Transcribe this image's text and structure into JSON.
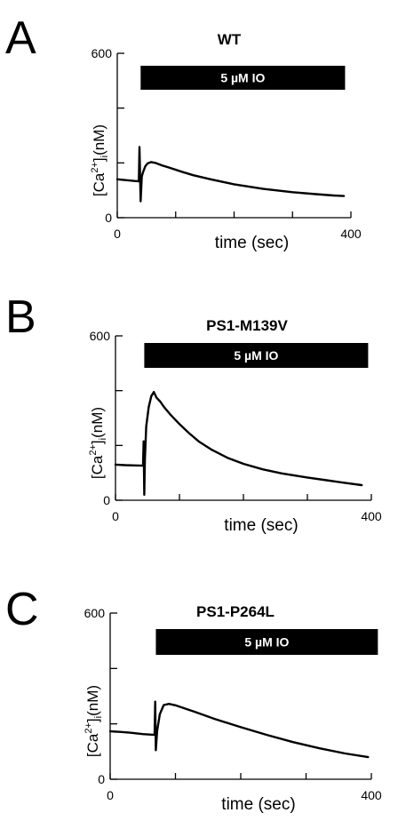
{
  "chart_data": [
    {
      "type": "line",
      "panel": "A",
      "title": "WT",
      "xlabel": "time (sec)",
      "ylabel_parts": {
        "a": "[Ca",
        "sup": "2+",
        "b": "]",
        "sub": "i",
        "c": "(nM)"
      },
      "xlim": [
        0,
        400
      ],
      "ylim": [
        0,
        600
      ],
      "x_ticks": [
        0,
        100,
        200,
        300,
        400
      ],
      "x_tick_labels": [
        "0",
        "",
        "",
        "",
        "400"
      ],
      "y_ticks": [
        0,
        200,
        400,
        600
      ],
      "y_tick_labels": [
        "0",
        "",
        "",
        "600"
      ],
      "grid": false,
      "bar": {
        "label": "5 µM IO",
        "start": 40,
        "end": 390
      },
      "series": [
        {
          "color": "#000000",
          "x": [
            0,
            10,
            20,
            30,
            37,
            38,
            40,
            42,
            44,
            48,
            52,
            58,
            65,
            75,
            90,
            110,
            130,
            160,
            200,
            250,
            300,
            340,
            370,
            388
          ],
          "y": [
            140,
            138,
            136,
            134,
            133,
            258,
            60,
            150,
            165,
            188,
            198,
            203,
            200,
            192,
            182,
            168,
            155,
            140,
            122,
            105,
            93,
            86,
            81,
            79
          ]
        }
      ]
    },
    {
      "type": "line",
      "panel": "B",
      "title": "PS1-M139V",
      "xlabel": "time (sec)",
      "ylabel_parts": {
        "a": "[Ca",
        "sup": "2+",
        "b": "]",
        "sub": "i",
        "c": "(nM)"
      },
      "xlim": [
        0,
        400
      ],
      "ylim": [
        0,
        600
      ],
      "x_ticks": [
        0,
        100,
        200,
        300,
        400
      ],
      "x_tick_labels": [
        "0",
        "",
        "",
        "",
        "400"
      ],
      "y_ticks": [
        0,
        200,
        400,
        600
      ],
      "y_tick_labels": [
        "0",
        "",
        "",
        "600"
      ],
      "grid": false,
      "bar": {
        "label": "5 µM IO",
        "start": 45,
        "end": 395
      },
      "series": [
        {
          "color": "#000000",
          "x": [
            0,
            15,
            30,
            43,
            44,
            45,
            46,
            48,
            52,
            56,
            60,
            64,
            70,
            76,
            85,
            100,
            115,
            130,
            150,
            175,
            200,
            230,
            260,
            300,
            330,
            360,
            385
          ],
          "y": [
            130,
            128,
            127,
            126,
            215,
            20,
            150,
            270,
            340,
            380,
            395,
            375,
            360,
            340,
            315,
            278,
            245,
            215,
            185,
            155,
            133,
            113,
            98,
            83,
            73,
            63,
            55
          ]
        }
      ]
    },
    {
      "type": "line",
      "panel": "C",
      "title": "PS1-P264L",
      "xlabel": "time (sec)",
      "ylabel_parts": {
        "a": "[Ca",
        "sup": "2+",
        "b": "]",
        "sub": "i",
        "c": "(nM)"
      },
      "xlim": [
        0,
        400
      ],
      "ylim": [
        0,
        600
      ],
      "x_ticks": [
        0,
        100,
        200,
        300,
        400
      ],
      "x_tick_labels": [
        "0",
        "",
        "",
        "",
        "400"
      ],
      "y_ticks": [
        0,
        200,
        400,
        600
      ],
      "y_tick_labels": [
        "0",
        "",
        "",
        "600"
      ],
      "grid": false,
      "bar": {
        "label": "5 µM IO",
        "start": 70,
        "end": 410
      },
      "series": [
        {
          "color": "#000000",
          "x": [
            0,
            15,
            30,
            50,
            68,
            69,
            70,
            72,
            76,
            82,
            90,
            100,
            115,
            130,
            160,
            200,
            240,
            280,
            320,
            360,
            395
          ],
          "y": [
            173,
            171,
            168,
            163,
            160,
            280,
            105,
            175,
            235,
            268,
            272,
            267,
            255,
            243,
            218,
            188,
            160,
            134,
            112,
            93,
            80
          ]
        }
      ]
    }
  ]
}
